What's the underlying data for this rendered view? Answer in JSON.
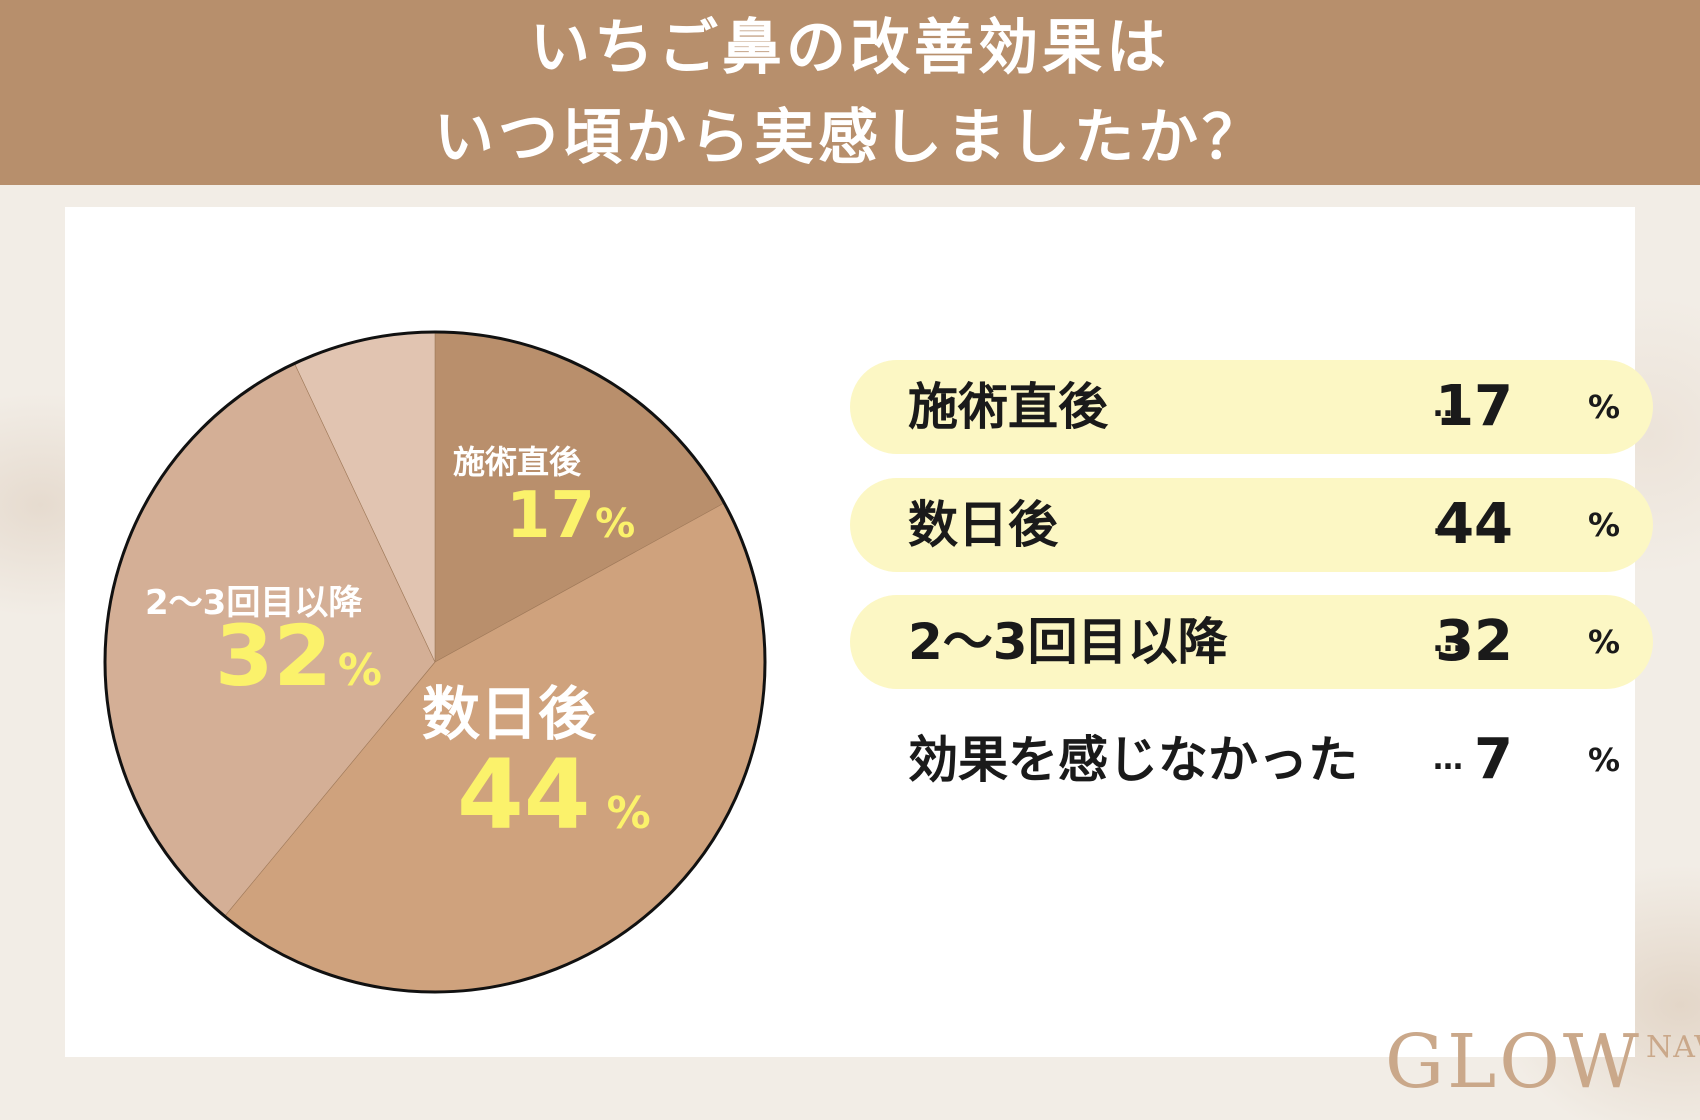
{
  "title": {
    "line1": "いちご鼻の改善効果は",
    "line2": "いつ頃から実感しましたか？"
  },
  "chart_data": {
    "type": "pie",
    "categories": [
      "施術直後",
      "数日後",
      "2〜3回目以降",
      "効果を感じなかった"
    ],
    "values": [
      17,
      44,
      32,
      7
    ],
    "unit": "%",
    "colors": [
      "#b98f6c",
      "#cfa27d",
      "#d4af96",
      "#e1c4b1"
    ],
    "slice_labels": [
      {
        "name": "施術直後",
        "value": "17",
        "unit": "%"
      },
      {
        "name": "数日後",
        "value": "44",
        "unit": "%"
      },
      {
        "name": "2〜3回目以降",
        "value": "32",
        "unit": "%"
      }
    ]
  },
  "legend": {
    "items": [
      {
        "label": "施術直後",
        "dots": "…",
        "value": "17",
        "unit": "%",
        "highlight": true
      },
      {
        "label": "数日後",
        "dots": "…",
        "value": "44",
        "unit": "%",
        "highlight": true
      },
      {
        "label": "2〜3回目以降",
        "dots": "…",
        "value": "32",
        "unit": "%",
        "highlight": true
      },
      {
        "label": "効果を感じなかった",
        "dots": "…",
        "value": "7",
        "unit": "%",
        "highlight": false
      }
    ]
  },
  "logo": {
    "text": "GLOW",
    "suffix": "NAVI"
  },
  "colors": {
    "header": "#b78f6c",
    "value_text": "#fbf26b",
    "legend_highlight": "#fcf7c4"
  }
}
